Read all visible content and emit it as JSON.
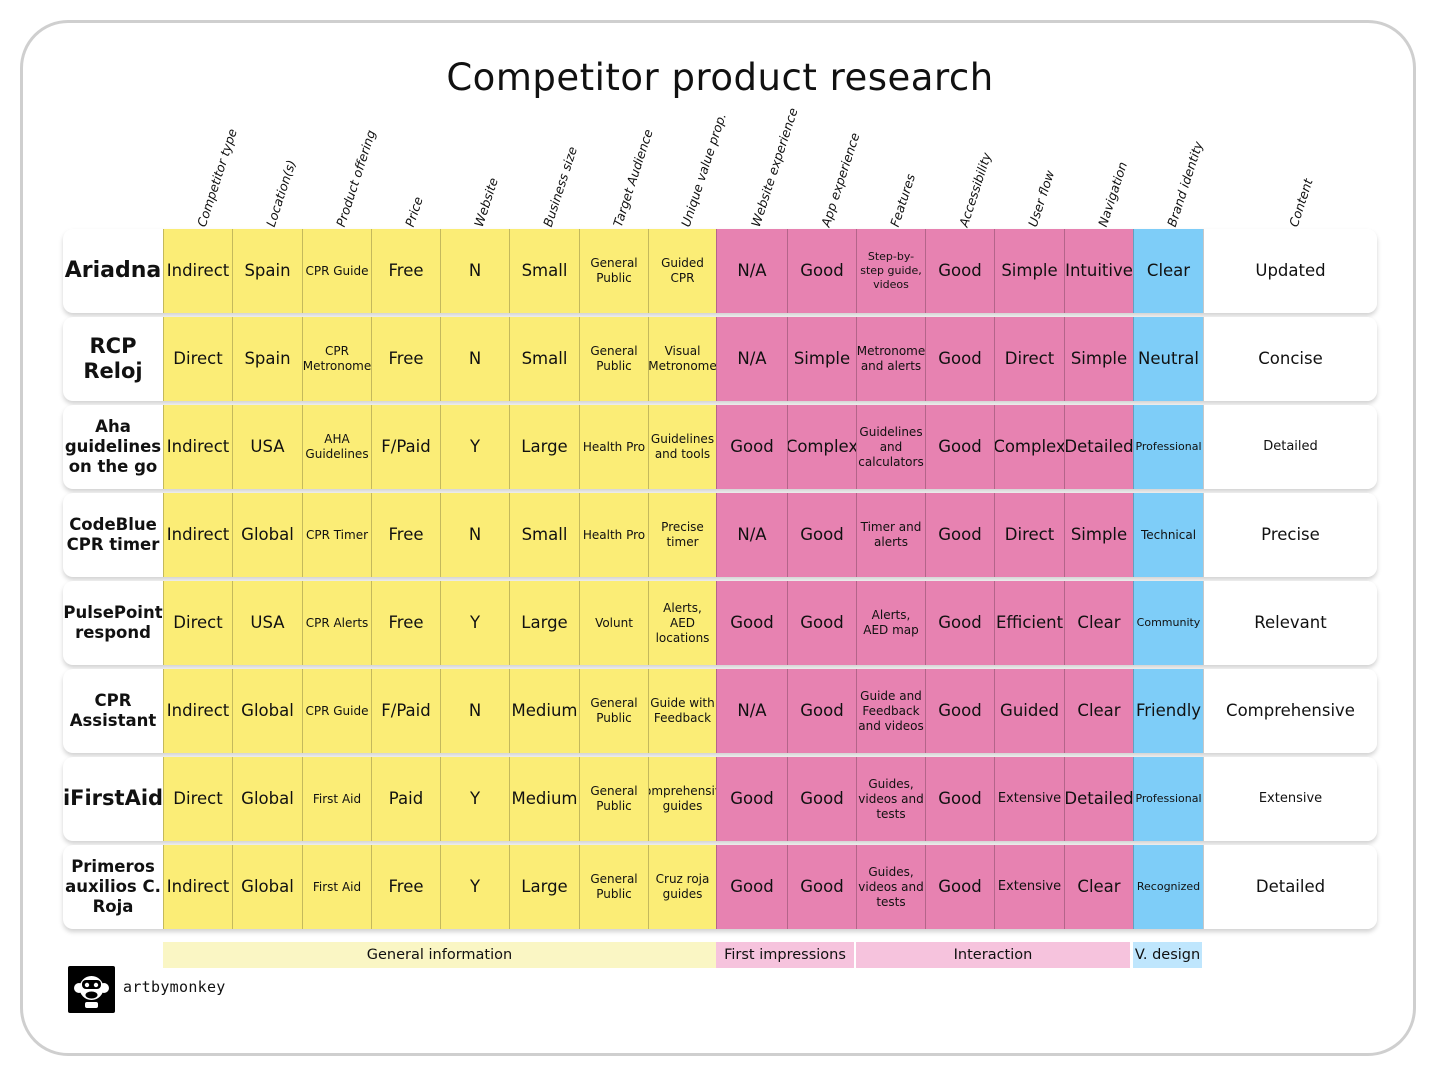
{
  "title": "Competitor product research",
  "colors": {
    "general": "#fbed76",
    "first_impressions": "#e782b1",
    "interaction": "#e782b1",
    "visual_design": "#7ecdf8",
    "legend_general": "#faf6c4",
    "legend_first": "#f6c3dd",
    "legend_interaction": "#f6c3dd",
    "legend_visual": "#bfe6fd"
  },
  "columns": [
    "Competitor type",
    "Location(s)",
    "Product offering",
    "Price",
    "Website",
    "Business size",
    "Target Audience",
    "Unique value prop.",
    "Website experience",
    "App experience",
    "Features",
    "Accessibility",
    "User flow",
    "Navigation",
    "Brand identity",
    "Content"
  ],
  "rows": [
    {
      "name": "Ariadna",
      "cells": [
        "Indirect",
        "Spain",
        "CPR Guide",
        "Free",
        "N",
        "Small",
        "General Public",
        "Guided CPR",
        "N/A",
        "Good",
        "Step-by-step guide, videos",
        "Good",
        "Simple",
        "Intuitive",
        "Clear",
        "Updated"
      ]
    },
    {
      "name": "RCP Reloj",
      "cells": [
        "Direct",
        "Spain",
        "CPR Metronome",
        "Free",
        "N",
        "Small",
        "General Public",
        "Visual Metronome",
        "N/A",
        "Simple",
        "Metronome and alerts",
        "Good",
        "Direct",
        "Simple",
        "Neutral",
        "Concise"
      ]
    },
    {
      "name": "Aha guidelines on the go",
      "cells": [
        "Indirect",
        "USA",
        "AHA Guidelines",
        "F/Paid",
        "Y",
        "Large",
        "Health Pro",
        "Guidelines and tools",
        "Good",
        "Complex",
        "Guidelines and calculators",
        "Good",
        "Complex",
        "Detailed",
        "Professional",
        "Detailed"
      ]
    },
    {
      "name": "CodeBlue CPR timer",
      "cells": [
        "Indirect",
        "Global",
        "CPR Timer",
        "Free",
        "N",
        "Small",
        "Health Pro",
        "Precise timer",
        "N/A",
        "Good",
        "Timer and alerts",
        "Good",
        "Direct",
        "Simple",
        "Technical",
        "Precise"
      ]
    },
    {
      "name": "PulsePoint respond",
      "cells": [
        "Direct",
        "USA",
        "CPR Alerts",
        "Free",
        "Y",
        "Large",
        "Volunt",
        "Alerts, AED locations",
        "Good",
        "Good",
        "Alerts, AED map",
        "Good",
        "Efficient",
        "Clear",
        "Community",
        "Relevant"
      ]
    },
    {
      "name": "CPR Assistant",
      "cells": [
        "Indirect",
        "Global",
        "CPR Guide",
        "F/Paid",
        "N",
        "Medium",
        "General Public",
        "Guide with Feedback",
        "N/A",
        "Good",
        "Guide and Feedback and videos",
        "Good",
        "Guided",
        "Clear",
        "Friendly",
        "Comprehensive"
      ]
    },
    {
      "name": "iFirstAid",
      "cells": [
        "Direct",
        "Global",
        "First Aid",
        "Paid",
        "Y",
        "Medium",
        "General Public",
        "Comprehensive guides",
        "Good",
        "Good",
        "Guides, videos and tests",
        "Good",
        "Extensive",
        "Detailed",
        "Professional",
        "Extensive"
      ]
    },
    {
      "name": "Primeros auxilios C. Roja",
      "cells": [
        "Indirect",
        "Global",
        "First Aid",
        "Free",
        "Y",
        "Large",
        "General Public",
        "Cruz roja guides",
        "Good",
        "Good",
        "Guides, videos and tests",
        "Good",
        "Extensive",
        "Clear",
        "Recognized",
        "Detailed"
      ]
    }
  ],
  "legend": {
    "general": "General information",
    "first_impressions": "First impressions",
    "interaction": "Interaction",
    "visual_design": "V. design"
  },
  "brand": {
    "logo_icon": "monkey-face-icon",
    "name": "artbymonkey"
  }
}
